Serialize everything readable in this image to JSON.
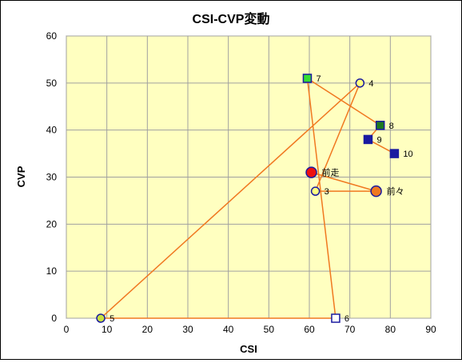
{
  "chart_data": {
    "type": "scatter",
    "title": "CSI-CVP変動",
    "xlabel": "CSI",
    "ylabel": "CVP",
    "xlim": [
      0,
      90
    ],
    "ylim": [
      0,
      60
    ],
    "xticks": [
      "0",
      "10",
      "20",
      "30",
      "40",
      "50",
      "60",
      "70",
      "80",
      "90"
    ],
    "yticks": [
      "0",
      "10",
      "20",
      "30",
      "40",
      "50",
      "60"
    ],
    "grid": true,
    "plot_background": "#ffffc0",
    "line_color": "#f07820",
    "path_order": [
      "前走",
      "前々",
      "3",
      "4",
      "5",
      "6",
      "7",
      "8",
      "9",
      "10"
    ],
    "points": [
      {
        "label": "前走",
        "x": 60.5,
        "y": 31,
        "shape": "circle-large",
        "fill": "#ee1111",
        "stroke": "#1a1aa0"
      },
      {
        "label": "前々",
        "x": 76.5,
        "y": 27,
        "shape": "circle-large",
        "fill": "#f07820",
        "stroke": "#1a1aa0"
      },
      {
        "label": "3",
        "x": 61.5,
        "y": 27,
        "shape": "circle",
        "fill": "#ffff80",
        "stroke": "#1a1aa0"
      },
      {
        "label": "4",
        "x": 72.5,
        "y": 50,
        "shape": "circle",
        "fill": "#ffff80",
        "stroke": "#1a1aa0"
      },
      {
        "label": "5",
        "x": 8.5,
        "y": 0,
        "shape": "circle",
        "fill": "#c8e040",
        "stroke": "#1a1aa0"
      },
      {
        "label": "6",
        "x": 66.5,
        "y": 0,
        "shape": "square",
        "fill": "#ffffff",
        "stroke": "#1a1aa0"
      },
      {
        "label": "7",
        "x": 59.5,
        "y": 51,
        "shape": "square",
        "fill": "#33dd33",
        "stroke": "#1a1aa0"
      },
      {
        "label": "8",
        "x": 77.5,
        "y": 41,
        "shape": "square",
        "fill": "#1e7a1e",
        "stroke": "#1a1aa0"
      },
      {
        "label": "9",
        "x": 74.5,
        "y": 38,
        "shape": "square",
        "fill": "#1a1aa0",
        "stroke": "#1a1aa0"
      },
      {
        "label": "10",
        "x": 81,
        "y": 35,
        "shape": "square",
        "fill": "#1a1aa0",
        "stroke": "#1a1aa0"
      }
    ]
  }
}
